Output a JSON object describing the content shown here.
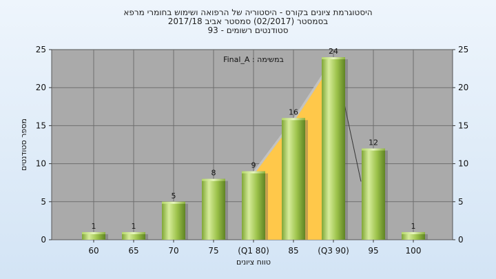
{
  "chart_data": {
    "type": "bar",
    "title_lines": [
      "היסטוגרמת ציונים בקורס - היסטוריה של הרפואה ושימוש בחומרי מרפא",
      "בסמסטר  (02/2017)  סמסטר אביב 2017/18",
      "סטודנטים רשומים - 93"
    ],
    "legend_label": "Final_A : במשימה",
    "categories": [
      "60",
      "65",
      "70",
      "75",
      "(Q1 80)",
      "85",
      "(Q3 90)",
      "95",
      "100"
    ],
    "values": [
      1,
      1,
      5,
      8,
      9,
      16,
      24,
      12,
      1
    ],
    "ylabel": "מספר סטודנטים",
    "xlabel": "טווח ציונים",
    "ylim": [
      0,
      25
    ],
    "yticks": [
      0,
      5,
      10,
      15,
      20,
      25
    ],
    "grid": true,
    "colors": {
      "bar_light": "#d6ec9a",
      "bar_mid": "#9cc24a",
      "bar_dark": "#5f8424",
      "plot_bg": "#aaaaaa",
      "grid": "#6e6e6e",
      "area_fill": "#ffc84a",
      "area_shadow": "#c4c4c4",
      "line": "#333333"
    }
  }
}
